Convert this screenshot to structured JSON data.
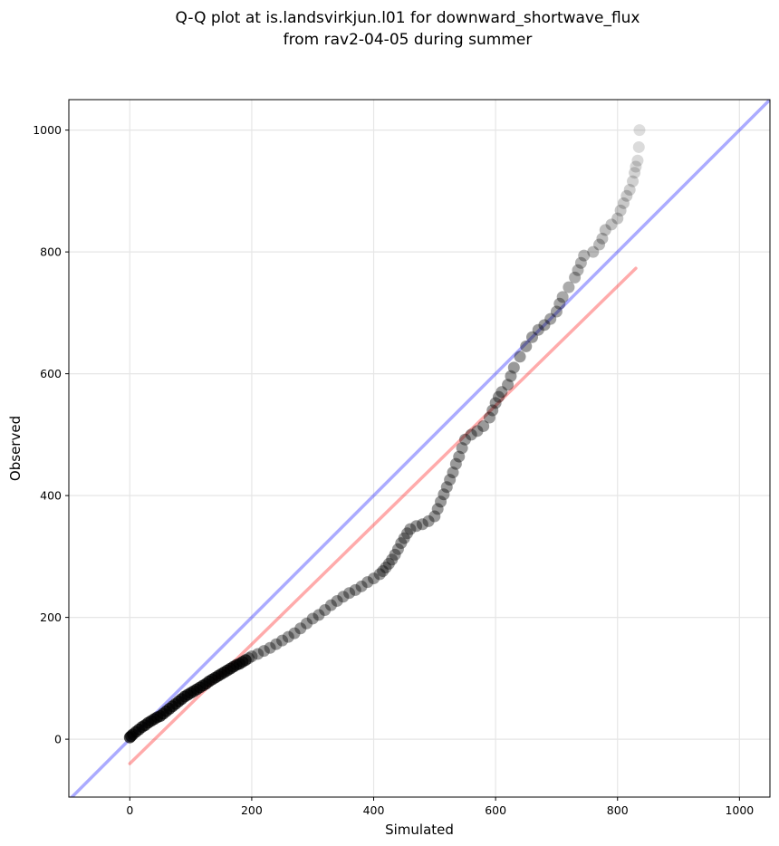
{
  "chart_data": {
    "type": "scatter",
    "title": "Q-Q plot at is.landsvirkjun.l01 for downward_shortwave_flux",
    "subtitle": "from rav2-04-05 during summer",
    "xlabel": "Simulated",
    "ylabel": "Observed",
    "xlim": [
      -100,
      1050
    ],
    "ylim": [
      -95,
      1050
    ],
    "xticks": [
      0,
      200,
      400,
      600,
      800,
      1000
    ],
    "yticks": [
      0,
      200,
      400,
      600,
      800,
      1000
    ],
    "grid": true,
    "legend": "none",
    "reference_lines": [
      {
        "kind": "identity",
        "color": "#0000ff",
        "x": [
          -100,
          1050
        ],
        "y": [
          -100,
          1050
        ]
      },
      {
        "kind": "fit",
        "color": "#ff0000",
        "x": [
          0,
          830
        ],
        "y": [
          -40,
          773
        ]
      }
    ],
    "series": [
      {
        "color": "#000000",
        "points": [
          [
            0,
            3
          ],
          [
            2,
            5
          ],
          [
            5,
            8
          ],
          [
            10,
            12
          ],
          [
            15,
            16
          ],
          [
            20,
            20
          ],
          [
            25,
            23
          ],
          [
            30,
            27
          ],
          [
            35,
            30
          ],
          [
            40,
            33
          ],
          [
            45,
            36
          ],
          [
            50,
            38
          ],
          [
            55,
            42
          ],
          [
            60,
            46
          ],
          [
            65,
            50
          ],
          [
            70,
            54
          ],
          [
            75,
            58
          ],
          [
            80,
            62
          ],
          [
            85,
            66
          ],
          [
            90,
            70
          ],
          [
            95,
            73
          ],
          [
            100,
            76
          ],
          [
            105,
            79
          ],
          [
            110,
            82
          ],
          [
            115,
            85
          ],
          [
            120,
            88
          ],
          [
            125,
            91
          ],
          [
            130,
            95
          ],
          [
            135,
            98
          ],
          [
            140,
            101
          ],
          [
            145,
            104
          ],
          [
            150,
            107
          ],
          [
            155,
            110
          ],
          [
            160,
            113
          ],
          [
            165,
            116
          ],
          [
            170,
            119
          ],
          [
            175,
            122
          ],
          [
            180,
            124
          ],
          [
            185,
            127
          ],
          [
            190,
            130
          ],
          [
            195,
            133
          ],
          [
            200,
            136
          ],
          [
            210,
            140
          ],
          [
            220,
            145
          ],
          [
            230,
            150
          ],
          [
            240,
            156
          ],
          [
            250,
            162
          ],
          [
            260,
            168
          ],
          [
            270,
            174
          ],
          [
            280,
            182
          ],
          [
            290,
            190
          ],
          [
            300,
            198
          ],
          [
            310,
            204
          ],
          [
            320,
            212
          ],
          [
            330,
            220
          ],
          [
            340,
            227
          ],
          [
            350,
            234
          ],
          [
            360,
            240
          ],
          [
            370,
            245
          ],
          [
            380,
            251
          ],
          [
            390,
            258
          ],
          [
            400,
            264
          ],
          [
            410,
            271
          ],
          [
            415,
            276
          ],
          [
            420,
            282
          ],
          [
            425,
            288
          ],
          [
            430,
            295
          ],
          [
            435,
            303
          ],
          [
            440,
            312
          ],
          [
            445,
            322
          ],
          [
            450,
            330
          ],
          [
            455,
            338
          ],
          [
            460,
            345
          ],
          [
            470,
            350
          ],
          [
            480,
            353
          ],
          [
            490,
            358
          ],
          [
            500,
            366
          ],
          [
            505,
            378
          ],
          [
            510,
            390
          ],
          [
            515,
            402
          ],
          [
            520,
            414
          ],
          [
            525,
            426
          ],
          [
            530,
            438
          ],
          [
            535,
            452
          ],
          [
            540,
            464
          ],
          [
            545,
            478
          ],
          [
            550,
            492
          ],
          [
            560,
            500
          ],
          [
            570,
            506
          ],
          [
            580,
            514
          ],
          [
            590,
            528
          ],
          [
            595,
            540
          ],
          [
            600,
            552
          ],
          [
            605,
            562
          ],
          [
            610,
            570
          ],
          [
            620,
            582
          ],
          [
            625,
            596
          ],
          [
            630,
            610
          ],
          [
            640,
            628
          ],
          [
            650,
            645
          ],
          [
            660,
            660
          ],
          [
            670,
            672
          ],
          [
            680,
            680
          ],
          [
            690,
            690
          ],
          [
            700,
            702
          ],
          [
            705,
            715
          ],
          [
            710,
            726
          ],
          [
            720,
            742
          ],
          [
            730,
            758
          ],
          [
            735,
            770
          ],
          [
            740,
            782
          ],
          [
            745,
            794
          ],
          [
            760,
            800
          ],
          [
            770,
            812
          ],
          [
            775,
            822
          ],
          [
            780,
            836
          ],
          [
            790,
            845
          ],
          [
            800,
            855
          ],
          [
            805,
            868
          ],
          [
            810,
            880
          ],
          [
            815,
            892
          ],
          [
            820,
            902
          ],
          [
            825,
            916
          ],
          [
            828,
            930
          ],
          [
            830,
            940
          ],
          [
            833,
            950
          ],
          [
            835,
            972
          ],
          [
            836,
            1000
          ]
        ]
      }
    ]
  }
}
